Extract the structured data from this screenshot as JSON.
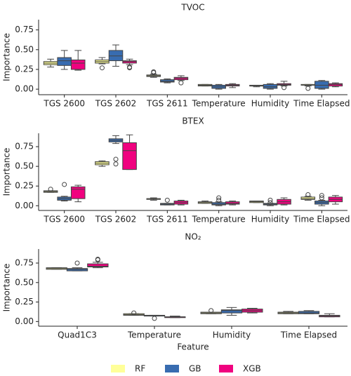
{
  "chart_data": [
    {
      "type": "box",
      "title": "TVOC",
      "y_label": "Importance",
      "categories": [
        "TGS 2600",
        "TGS 2602",
        "TGS 2611",
        "Temperature",
        "Humidity",
        "Time Elapsed"
      ],
      "ylim": [
        -0.07,
        0.88
      ],
      "yticks": [
        0.0,
        0.25,
        0.5,
        0.75
      ],
      "series": [
        {
          "color": "#ffff99",
          "values": [
            {
              "whislo": 0.28,
              "q1": 0.31,
              "median": 0.33,
              "q3": 0.35,
              "whishi": 0.38,
              "fliers": []
            },
            {
              "whislo": 0.32,
              "q1": 0.33,
              "median": 0.35,
              "q3": 0.37,
              "whishi": 0.4,
              "fliers": [
                0.27
              ]
            },
            {
              "whislo": 0.15,
              "q1": 0.16,
              "median": 0.17,
              "q3": 0.18,
              "whishi": 0.19,
              "fliers": [
                0.22,
                0.21
              ]
            },
            {
              "whislo": 0.04,
              "q1": 0.04,
              "median": 0.05,
              "q3": 0.06,
              "whishi": 0.06,
              "fliers": []
            },
            {
              "whislo": 0.03,
              "q1": 0.04,
              "median": 0.04,
              "q3": 0.05,
              "whishi": 0.05,
              "fliers": []
            },
            {
              "whislo": 0.04,
              "q1": 0.05,
              "median": 0.05,
              "q3": 0.06,
              "whishi": 0.06,
              "fliers": [
                0.01
              ]
            }
          ]
        },
        {
          "color": "#386cb0",
          "values": [
            {
              "whislo": 0.25,
              "q1": 0.3,
              "median": 0.36,
              "q3": 0.4,
              "whishi": 0.49,
              "fliers": []
            },
            {
              "whislo": 0.29,
              "q1": 0.36,
              "median": 0.42,
              "q3": 0.49,
              "whishi": 0.56,
              "fliers": []
            },
            {
              "whislo": 0.08,
              "q1": 0.09,
              "median": 0.1,
              "q3": 0.12,
              "whishi": 0.13,
              "fliers": []
            },
            {
              "whislo": 0.0,
              "q1": 0.01,
              "median": 0.03,
              "q3": 0.05,
              "whishi": 0.06,
              "fliers": []
            },
            {
              "whislo": 0.0,
              "q1": 0.01,
              "median": 0.03,
              "q3": 0.06,
              "whishi": 0.07,
              "fliers": []
            },
            {
              "whislo": 0.0,
              "q1": 0.01,
              "median": 0.05,
              "q3": 0.1,
              "whishi": 0.11,
              "fliers": []
            }
          ]
        },
        {
          "color": "#f0027f",
          "values": [
            {
              "whislo": 0.24,
              "q1": 0.25,
              "median": 0.33,
              "q3": 0.37,
              "whishi": 0.49,
              "fliers": []
            },
            {
              "whislo": 0.31,
              "q1": 0.33,
              "median": 0.35,
              "q3": 0.36,
              "whishi": 0.38,
              "fliers": [
                0.27,
                0.28
              ]
            },
            {
              "whislo": 0.11,
              "q1": 0.12,
              "median": 0.14,
              "q3": 0.15,
              "whishi": 0.17,
              "fliers": [
                0.08
              ]
            },
            {
              "whislo": 0.02,
              "q1": 0.04,
              "median": 0.05,
              "q3": 0.06,
              "whishi": 0.07,
              "fliers": []
            },
            {
              "whislo": 0.04,
              "q1": 0.05,
              "median": 0.06,
              "q3": 0.07,
              "whishi": 0.1,
              "fliers": [
                0.02
              ]
            },
            {
              "whislo": 0.03,
              "q1": 0.04,
              "median": 0.06,
              "q3": 0.07,
              "whishi": 0.08,
              "fliers": []
            }
          ]
        }
      ]
    },
    {
      "type": "box",
      "title": "BTEX",
      "y_label": "Importance",
      "categories": [
        "TGS 2600",
        "TGS 2602",
        "TGS 2611",
        "Temperature",
        "Humidity",
        "Time Elapsed"
      ],
      "ylim": [
        -0.06,
        0.92
      ],
      "yticks": [
        0.0,
        0.25,
        0.5,
        0.75
      ],
      "series": [
        {
          "color": "#ffff99",
          "values": [
            {
              "whislo": 0.17,
              "q1": 0.17,
              "median": 0.18,
              "q3": 0.19,
              "whishi": 0.19,
              "fliers": [
                0.21
              ]
            },
            {
              "whislo": 0.5,
              "q1": 0.52,
              "median": 0.54,
              "q3": 0.56,
              "whishi": 0.57,
              "fliers": []
            },
            {
              "whislo": 0.07,
              "q1": 0.08,
              "median": 0.09,
              "q3": 0.09,
              "whishi": 0.1,
              "fliers": []
            },
            {
              "whislo": 0.03,
              "q1": 0.03,
              "median": 0.04,
              "q3": 0.05,
              "whishi": 0.06,
              "fliers": []
            },
            {
              "whislo": 0.04,
              "q1": 0.04,
              "median": 0.05,
              "q3": 0.06,
              "whishi": 0.06,
              "fliers": []
            },
            {
              "whislo": 0.07,
              "q1": 0.08,
              "median": 0.09,
              "q3": 0.11,
              "whishi": 0.12,
              "fliers": [
                0.14
              ]
            }
          ]
        },
        {
          "color": "#386cb0",
          "values": [
            {
              "whislo": 0.06,
              "q1": 0.07,
              "median": 0.09,
              "q3": 0.11,
              "whishi": 0.12,
              "fliers": [
                0.27
              ]
            },
            {
              "whislo": 0.79,
              "q1": 0.81,
              "median": 0.83,
              "q3": 0.85,
              "whishi": 0.89,
              "fliers": [
                0.59,
                0.53
              ]
            },
            {
              "whislo": 0.01,
              "q1": 0.01,
              "median": 0.02,
              "q3": 0.03,
              "whishi": 0.03,
              "fliers": [
                0.07
              ]
            },
            {
              "whislo": 0.0,
              "q1": 0.01,
              "median": 0.02,
              "q3": 0.04,
              "whishi": 0.05,
              "fliers": [
                0.1,
                0.07
              ]
            },
            {
              "whislo": 0.0,
              "q1": 0.01,
              "median": 0.02,
              "q3": 0.03,
              "whishi": 0.03,
              "fliers": [
                0.07,
                0.04
              ]
            },
            {
              "whislo": 0.0,
              "q1": 0.02,
              "median": 0.04,
              "q3": 0.06,
              "whishi": 0.07,
              "fliers": [
                0.13,
                0.1
              ]
            }
          ]
        },
        {
          "color": "#f0027f",
          "values": [
            {
              "whislo": 0.05,
              "q1": 0.09,
              "median": 0.21,
              "q3": 0.24,
              "whishi": 0.26,
              "fliers": []
            },
            {
              "whislo": 0.46,
              "q1": 0.46,
              "median": 0.7,
              "q3": 0.8,
              "whishi": 0.9,
              "fliers": []
            },
            {
              "whislo": 0.01,
              "q1": 0.02,
              "median": 0.04,
              "q3": 0.06,
              "whishi": 0.07,
              "fliers": []
            },
            {
              "whislo": 0.01,
              "q1": 0.02,
              "median": 0.03,
              "q3": 0.05,
              "whishi": 0.06,
              "fliers": []
            },
            {
              "whislo": 0.01,
              "q1": 0.02,
              "median": 0.05,
              "q3": 0.08,
              "whishi": 0.1,
              "fliers": []
            },
            {
              "whislo": 0.02,
              "q1": 0.05,
              "median": 0.08,
              "q3": 0.11,
              "whishi": 0.13,
              "fliers": []
            }
          ]
        }
      ]
    },
    {
      "type": "box",
      "title": "NO₂",
      "y_label": "Importance",
      "x_label": "Feature",
      "categories": [
        "Quad1C3",
        "Temperature",
        "Humidity",
        "Time Elapsed"
      ],
      "ylim": [
        -0.06,
        0.93
      ],
      "yticks": [
        0.0,
        0.25,
        0.5,
        0.75
      ],
      "series": [
        {
          "name": "RF",
          "color": "#ffff99",
          "values": [
            {
              "whislo": 0.67,
              "q1": 0.67,
              "median": 0.68,
              "q3": 0.69,
              "whishi": 0.69,
              "fliers": []
            },
            {
              "whislo": 0.08,
              "q1": 0.08,
              "median": 0.09,
              "q3": 0.1,
              "whishi": 0.1,
              "fliers": [
                0.11
              ]
            },
            {
              "whislo": 0.1,
              "q1": 0.1,
              "median": 0.11,
              "q3": 0.12,
              "whishi": 0.12,
              "fliers": [
                0.14
              ]
            },
            {
              "whislo": 0.1,
              "q1": 0.1,
              "median": 0.11,
              "q3": 0.12,
              "whishi": 0.13,
              "fliers": []
            }
          ]
        },
        {
          "name": "GB",
          "color": "#386cb0",
          "values": [
            {
              "whislo": 0.65,
              "q1": 0.65,
              "median": 0.67,
              "q3": 0.68,
              "whishi": 0.69,
              "fliers": [
                0.75
              ]
            },
            {
              "whislo": 0.07,
              "q1": 0.07,
              "median": 0.08,
              "q3": 0.08,
              "whishi": 0.08,
              "fliers": [
                0.04
              ]
            },
            {
              "whislo": 0.08,
              "q1": 0.11,
              "median": 0.14,
              "q3": 0.15,
              "whishi": 0.18,
              "fliers": []
            },
            {
              "whislo": 0.1,
              "q1": 0.1,
              "median": 0.11,
              "q3": 0.13,
              "whishi": 0.14,
              "fliers": []
            }
          ]
        },
        {
          "name": "XGB",
          "color": "#f0027f",
          "values": [
            {
              "whislo": 0.69,
              "q1": 0.7,
              "median": 0.71,
              "q3": 0.74,
              "whishi": 0.76,
              "fliers": [
                0.79,
                0.8
              ]
            },
            {
              "whislo": 0.05,
              "q1": 0.05,
              "median": 0.06,
              "q3": 0.06,
              "whishi": 0.07,
              "fliers": []
            },
            {
              "whislo": 0.11,
              "q1": 0.12,
              "median": 0.14,
              "q3": 0.16,
              "whishi": 0.17,
              "fliers": []
            },
            {
              "whislo": 0.06,
              "q1": 0.06,
              "median": 0.07,
              "q3": 0.08,
              "whishi": 0.1,
              "fliers": []
            }
          ]
        }
      ]
    }
  ]
}
